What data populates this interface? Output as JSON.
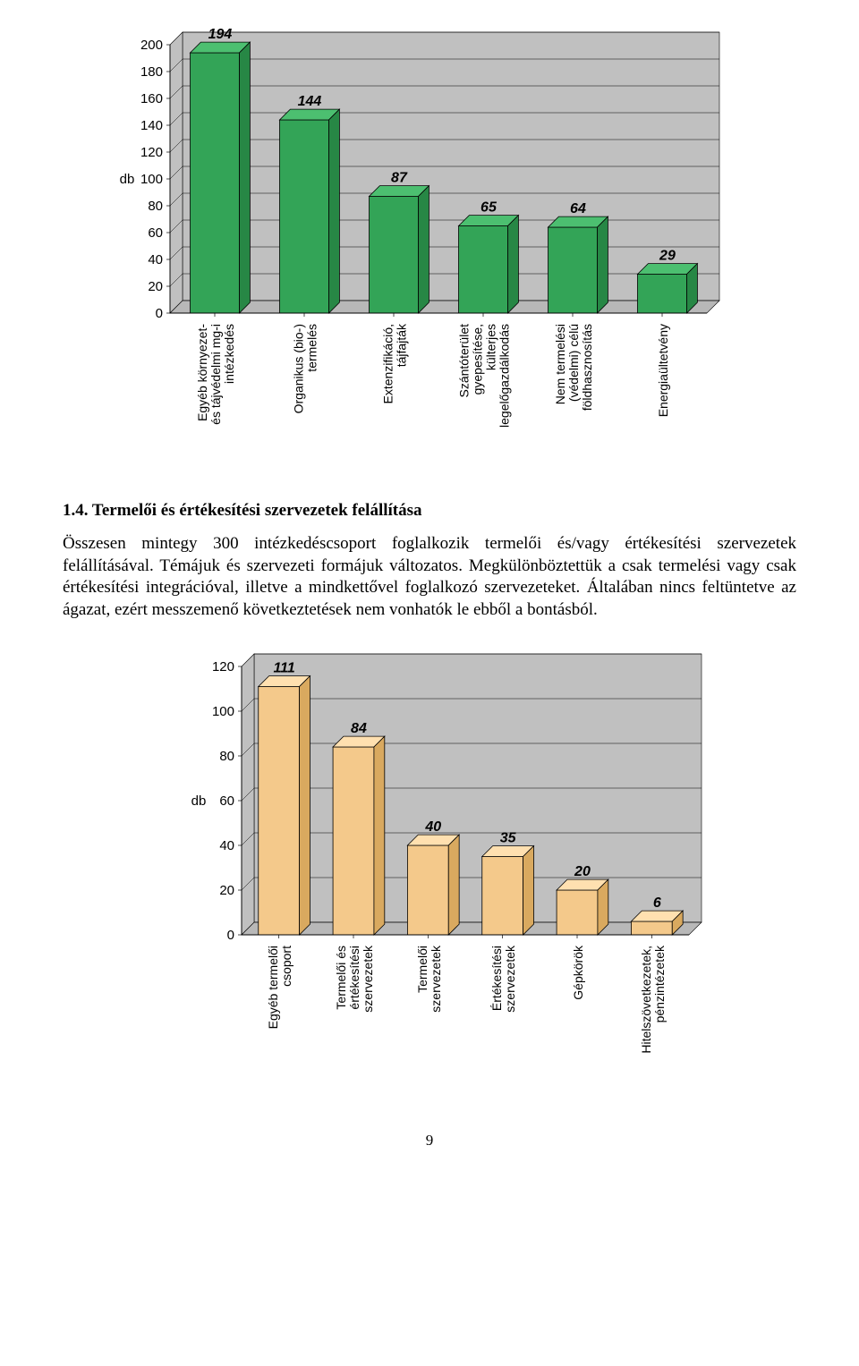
{
  "chart1": {
    "type": "bar-3d",
    "ylabel": "db",
    "label_fontsize": 15,
    "ylim": [
      0,
      200
    ],
    "ytick_step": 20,
    "categories": [
      "Egyéb környezet-\nés tájvédelmi mg-i\nintézkedés",
      "Organikus (bio-)\ntermelés",
      "Extenzifikáció,\ntájfajták",
      "Szántóterület\ngyepesítése,\nkülterjes\nlegelőgazdálkodás",
      "Nem termelési\n(védelmi) célú\nföldhasznosítás",
      "Energiaültetvény"
    ],
    "values": [
      194,
      144,
      87,
      65,
      64,
      29
    ],
    "bar_fill_front": "#33a457",
    "bar_fill_top": "#4cbf70",
    "bar_fill_side": "#278745",
    "bar_outline": "#000000",
    "background_fill": "#c0c0c0",
    "floor_fill": "#b8b8b8",
    "grid_color": "#000000",
    "value_font": {
      "size": 16,
      "weight": "bold",
      "style": "italic"
    }
  },
  "section": {
    "heading": "1.4. Termelői és értékesítési szervezetek felállítása",
    "body": "Összesen mintegy 300 intézkedéscsoport foglalkozik termelői és/vagy értékesítési szervezetek felállításával. Témájuk és szervezeti formájuk változatos. Megkülönböztettük a csak termelési vagy csak értékesítési integrációval, illetve a mindkettővel foglalkozó szervezeteket. Általában nincs feltüntetve az ágazat, ezért messzemenő következtetések nem vonhatók le ebből a bontásból."
  },
  "chart2": {
    "type": "bar-3d",
    "ylabel": "db",
    "label_fontsize": 15,
    "ylim": [
      0,
      120
    ],
    "ytick_step": 20,
    "categories": [
      "Egyéb termelői\ncsoport",
      "Termelői és\nértékesítési\nszervezetek",
      "Termelői\nszervezetek",
      "Értékesítési\nszervezetek",
      "Gépkörök",
      "Hitelszövetkezetek,\npénzintézetek"
    ],
    "values": [
      111,
      84,
      40,
      35,
      20,
      6
    ],
    "bar_fill_front": "#f4c98b",
    "bar_fill_top": "#ffe0b0",
    "bar_fill_side": "#d9a95f",
    "bar_outline": "#000000",
    "background_fill": "#c0c0c0",
    "floor_fill": "#b8b8b8",
    "grid_color": "#000000",
    "value_font": {
      "size": 16,
      "weight": "bold",
      "style": "italic"
    }
  },
  "page_number": "9"
}
